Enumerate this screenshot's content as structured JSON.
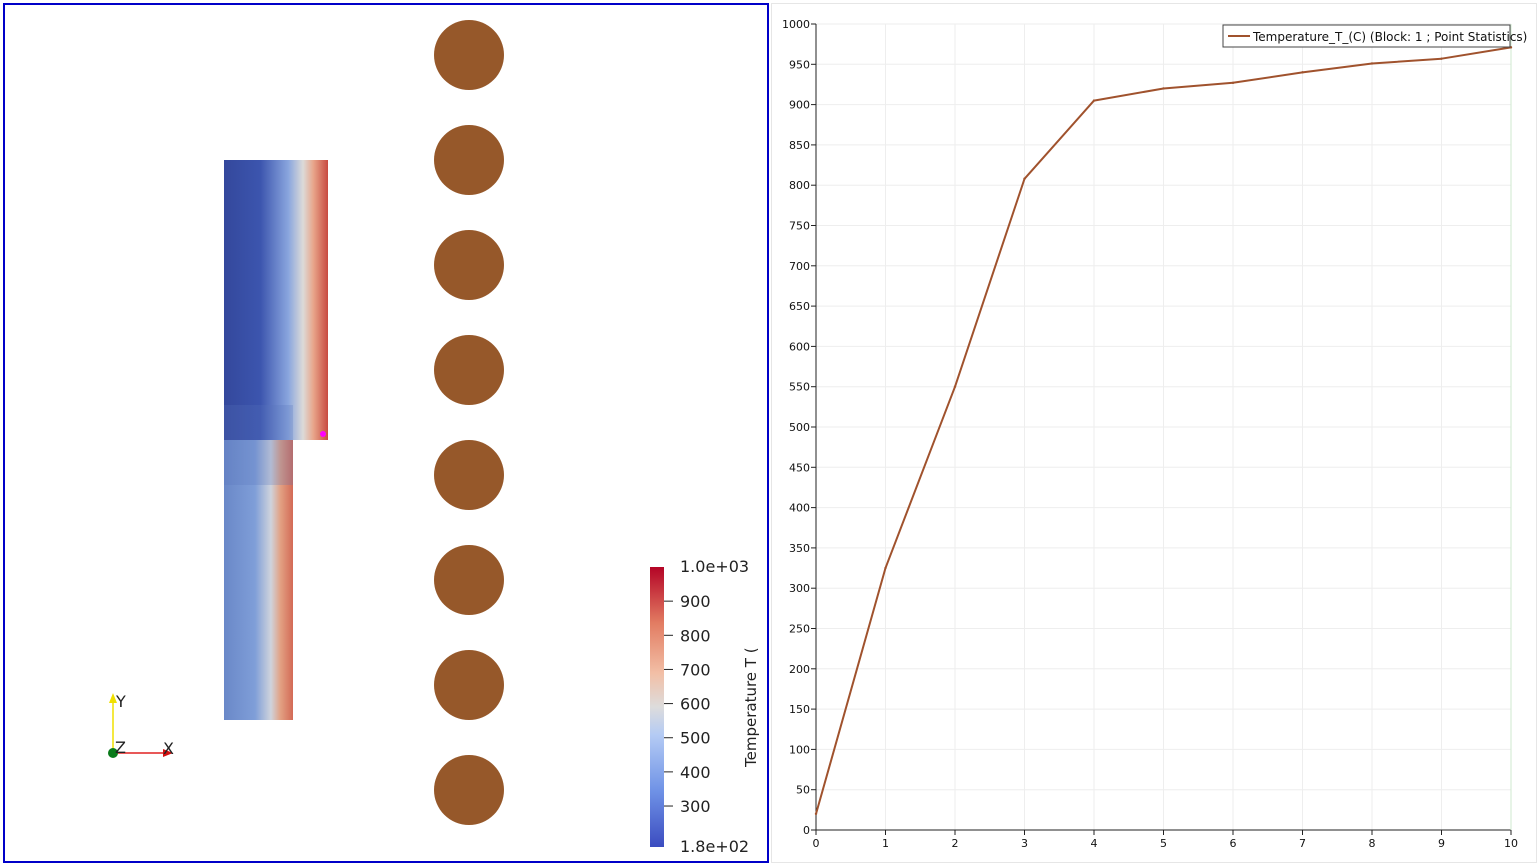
{
  "render_view": {
    "domain_colormap": [
      "#3b4cc0",
      "#4a62c8",
      "#7fa0e0",
      "#dddcdc",
      "#e58a6c",
      "#b40426"
    ],
    "pin_color": "#96582a",
    "probe_color": "#ff00ff",
    "pin_count": 8,
    "color_legend": {
      "title": "Temperature T (",
      "max_label": "1.0e+03",
      "min_label": "1.8e+02",
      "tick_labels": [
        "900",
        "800",
        "700",
        "600",
        "500",
        "400",
        "300"
      ],
      "tick_values": [
        900,
        800,
        700,
        600,
        500,
        400,
        300
      ],
      "range": [
        180,
        1000
      ]
    },
    "axes": {
      "y_label": "Y",
      "x_label": "X",
      "z_label": "Z"
    }
  },
  "chart_data": {
    "type": "line",
    "x": [
      0,
      1,
      2,
      3,
      4,
      5,
      6,
      7,
      8,
      9,
      10
    ],
    "series": [
      {
        "name": "Temperature_T_(C) (Block: 1 ; Point Statistics)",
        "color": "#a0522d",
        "values": [
          20,
          325,
          550,
          808,
          905,
          920,
          927,
          940,
          951,
          957,
          971
        ]
      }
    ],
    "xlim": [
      0,
      10
    ],
    "ylim": [
      0,
      1000
    ],
    "x_ticks": [
      0,
      1,
      2,
      3,
      4,
      5,
      6,
      7,
      8,
      9,
      10
    ],
    "y_ticks": [
      0,
      50,
      100,
      150,
      200,
      250,
      300,
      350,
      400,
      450,
      500,
      550,
      600,
      650,
      700,
      750,
      800,
      850,
      900,
      950,
      1000
    ],
    "grid": true,
    "legend_position": "top-right",
    "title": "",
    "xlabel": "",
    "ylabel": ""
  }
}
